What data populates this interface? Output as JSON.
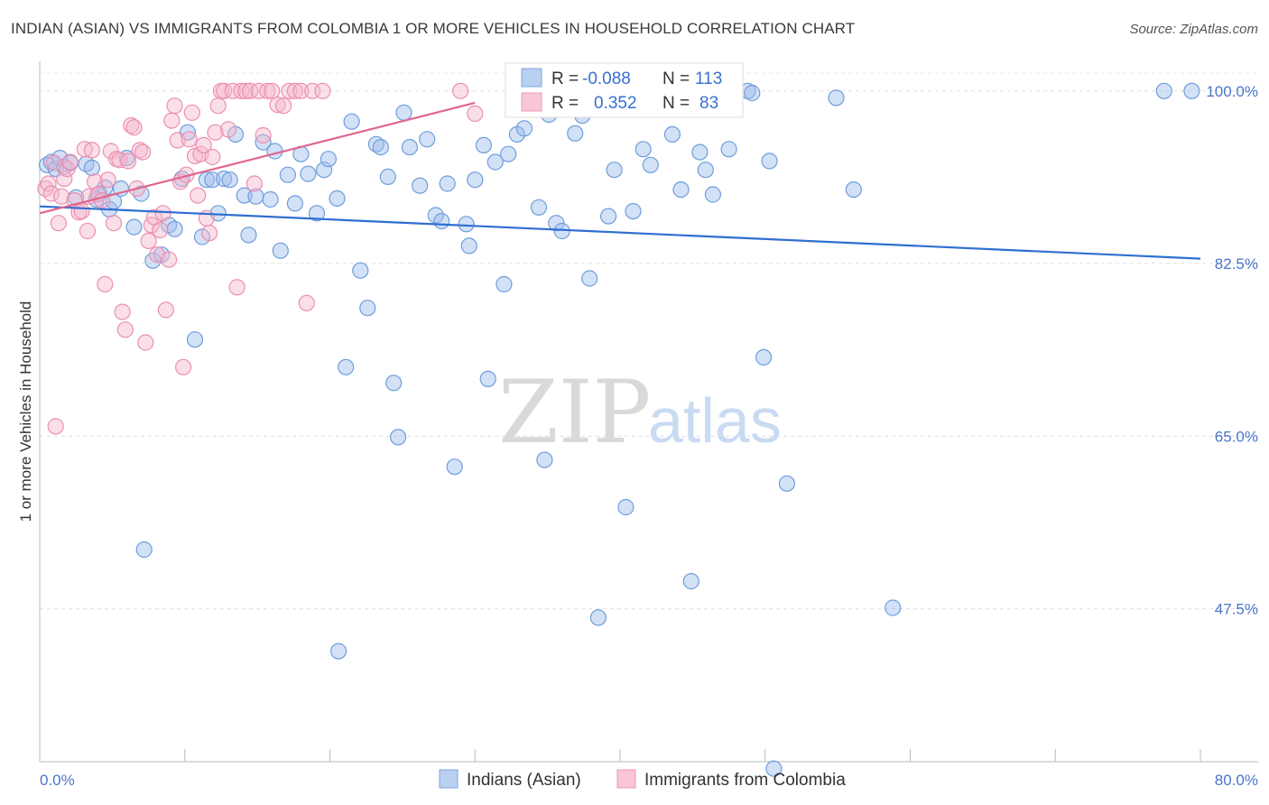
{
  "title": "INDIAN (ASIAN) VS IMMIGRANTS FROM COLOMBIA 1 OR MORE VEHICLES IN HOUSEHOLD CORRELATION CHART",
  "source": "Source: ZipAtlas.com",
  "watermark": {
    "zip": "ZIP",
    "atlas": "atlas"
  },
  "chart_data": {
    "type": "scatter",
    "title": "INDIAN (ASIAN) VS IMMIGRANTS FROM COLOMBIA 1 OR MORE VEHICLES IN HOUSEHOLD CORRELATION CHART",
    "xlabel": "",
    "ylabel": "1 or more Vehicles in Household",
    "xlim": [
      0,
      80
    ],
    "ylim": [
      32,
      103
    ],
    "x_tick_labels": [
      {
        "value": 0,
        "label": "0.0%"
      },
      {
        "value": 80,
        "label": "80.0%"
      }
    ],
    "y_tick_labels": [
      {
        "value": 100,
        "label": "100.0%"
      },
      {
        "value": 82.5,
        "label": "82.5%"
      },
      {
        "value": 65,
        "label": "65.0%"
      },
      {
        "value": 47.5,
        "label": "47.5%"
      }
    ],
    "grid": true,
    "legend": {
      "position": "top-center",
      "entries": [
        {
          "r_label": "R =",
          "r": "-0.088",
          "n_label": "N =",
          "n": "113"
        },
        {
          "r_label": "R =",
          "r": "0.352",
          "n_label": "N =",
          "n": "83"
        }
      ]
    },
    "series": [
      {
        "name": "Indians (Asian)",
        "color": "#9dbdea",
        "stroke": "#6f9ddc",
        "trend_color": "#2f6fd0",
        "trend": {
          "x": [
            0,
            80
          ],
          "y": [
            88.3,
            83.0
          ]
        },
        "points": [
          [
            0.5,
            92.5
          ],
          [
            0.8,
            92.8
          ],
          [
            1.1,
            92.1
          ],
          [
            1.4,
            93.2
          ],
          [
            1.7,
            92.3
          ],
          [
            2.1,
            92.7
          ],
          [
            2.5,
            89.2
          ],
          [
            3.2,
            92.6
          ],
          [
            3.6,
            92.2
          ],
          [
            3.9,
            89.0
          ],
          [
            4.1,
            89.6
          ],
          [
            4.5,
            90.2
          ],
          [
            4.8,
            88.0
          ],
          [
            5.1,
            88.8
          ],
          [
            5.6,
            90.1
          ],
          [
            6.0,
            93.2
          ],
          [
            6.5,
            86.2
          ],
          [
            7.0,
            89.6
          ],
          [
            7.8,
            82.8
          ],
          [
            8.4,
            83.4
          ],
          [
            8.9,
            86.4
          ],
          [
            9.3,
            86.0
          ],
          [
            9.8,
            91.1
          ],
          [
            10.2,
            95.8
          ],
          [
            10.7,
            74.8
          ],
          [
            11.2,
            85.2
          ],
          [
            11.5,
            91.0
          ],
          [
            11.9,
            91.0
          ],
          [
            12.3,
            87.6
          ],
          [
            12.7,
            91.1
          ],
          [
            13.1,
            91.0
          ],
          [
            13.5,
            95.6
          ],
          [
            14.1,
            89.4
          ],
          [
            14.4,
            85.4
          ],
          [
            14.9,
            89.3
          ],
          [
            15.4,
            94.8
          ],
          [
            15.9,
            89.0
          ],
          [
            16.2,
            93.9
          ],
          [
            16.6,
            83.8
          ],
          [
            17.1,
            91.5
          ],
          [
            17.6,
            88.6
          ],
          [
            18.0,
            93.6
          ],
          [
            18.5,
            91.6
          ],
          [
            19.1,
            87.6
          ],
          [
            19.6,
            92.0
          ],
          [
            19.9,
            93.1
          ],
          [
            20.5,
            89.1
          ],
          [
            21.1,
            72.0
          ],
          [
            21.5,
            96.9
          ],
          [
            22.1,
            81.8
          ],
          [
            22.6,
            78.0
          ],
          [
            23.2,
            94.6
          ],
          [
            23.5,
            94.3
          ],
          [
            24.0,
            91.3
          ],
          [
            24.4,
            70.4
          ],
          [
            24.7,
            64.9
          ],
          [
            25.1,
            97.8
          ],
          [
            25.5,
            94.3
          ],
          [
            26.2,
            90.4
          ],
          [
            26.7,
            95.1
          ],
          [
            27.3,
            87.4
          ],
          [
            27.7,
            86.8
          ],
          [
            28.1,
            90.6
          ],
          [
            28.6,
            61.9
          ],
          [
            29.4,
            86.5
          ],
          [
            29.6,
            84.3
          ],
          [
            30.0,
            91.0
          ],
          [
            30.6,
            94.5
          ],
          [
            30.9,
            70.8
          ],
          [
            31.4,
            92.8
          ],
          [
            32.0,
            80.4
          ],
          [
            32.3,
            93.6
          ],
          [
            32.9,
            95.6
          ],
          [
            33.4,
            96.2
          ],
          [
            33.9,
            100.0
          ],
          [
            34.4,
            88.2
          ],
          [
            34.8,
            62.6
          ],
          [
            35.1,
            97.6
          ],
          [
            35.6,
            86.6
          ],
          [
            36.0,
            85.8
          ],
          [
            36.4,
            98.3
          ],
          [
            36.9,
            95.7
          ],
          [
            37.4,
            97.5
          ],
          [
            37.9,
            81.0
          ],
          [
            38.1,
            98.5
          ],
          [
            38.5,
            46.6
          ],
          [
            39.2,
            87.3
          ],
          [
            39.6,
            92.0
          ],
          [
            40.4,
            57.8
          ],
          [
            40.9,
            87.8
          ],
          [
            41.6,
            94.1
          ],
          [
            42.1,
            92.5
          ],
          [
            43.0,
            98.6
          ],
          [
            43.6,
            95.6
          ],
          [
            44.2,
            90.0
          ],
          [
            44.9,
            50.3
          ],
          [
            45.5,
            93.8
          ],
          [
            45.9,
            92.0
          ],
          [
            46.4,
            89.5
          ],
          [
            47.5,
            94.1
          ],
          [
            48.8,
            100.0
          ],
          [
            49.1,
            99.8
          ],
          [
            49.9,
            73.0
          ],
          [
            50.3,
            92.9
          ],
          [
            50.6,
            31.3
          ],
          [
            51.5,
            60.2
          ],
          [
            54.9,
            99.3
          ],
          [
            56.1,
            90.0
          ],
          [
            58.8,
            47.6
          ],
          [
            77.5,
            100.0
          ],
          [
            79.4,
            100.0
          ],
          [
            7.2,
            53.5
          ],
          [
            20.6,
            43.2
          ]
        ]
      },
      {
        "name": "Immigrants from Colombia",
        "color": "#f5b8cf",
        "stroke": "#eb8fb0",
        "trend_color": "#e06690",
        "trend": {
          "x": [
            0,
            30
          ],
          "y": [
            87.6,
            98.8
          ]
        },
        "points": [
          [
            0.4,
            90.1
          ],
          [
            0.6,
            90.6
          ],
          [
            0.8,
            89.6
          ],
          [
            1.0,
            92.7
          ],
          [
            1.1,
            66.0
          ],
          [
            1.3,
            86.6
          ],
          [
            1.5,
            89.3
          ],
          [
            1.7,
            91.1
          ],
          [
            1.9,
            92.1
          ],
          [
            2.1,
            92.8
          ],
          [
            2.4,
            88.9
          ],
          [
            2.7,
            87.7
          ],
          [
            2.9,
            87.8
          ],
          [
            3.1,
            94.1
          ],
          [
            3.3,
            85.8
          ],
          [
            3.4,
            89.3
          ],
          [
            3.6,
            94.0
          ],
          [
            3.8,
            90.8
          ],
          [
            4.0,
            89.5
          ],
          [
            4.3,
            88.9
          ],
          [
            4.5,
            80.4
          ],
          [
            4.7,
            91.0
          ],
          [
            4.9,
            93.9
          ],
          [
            5.1,
            86.6
          ],
          [
            5.3,
            93.1
          ],
          [
            5.5,
            93.0
          ],
          [
            5.7,
            77.6
          ],
          [
            5.9,
            75.8
          ],
          [
            6.1,
            92.9
          ],
          [
            6.3,
            96.5
          ],
          [
            6.5,
            96.3
          ],
          [
            6.7,
            90.1
          ],
          [
            6.9,
            94.0
          ],
          [
            7.1,
            93.8
          ],
          [
            7.3,
            74.5
          ],
          [
            7.5,
            84.8
          ],
          [
            7.7,
            86.4
          ],
          [
            7.9,
            87.2
          ],
          [
            8.1,
            83.4
          ],
          [
            8.3,
            85.9
          ],
          [
            8.5,
            87.6
          ],
          [
            8.7,
            77.8
          ],
          [
            8.9,
            82.9
          ],
          [
            9.1,
            97.0
          ],
          [
            9.3,
            98.5
          ],
          [
            9.5,
            95.0
          ],
          [
            9.7,
            90.8
          ],
          [
            9.9,
            72.0
          ],
          [
            10.1,
            91.5
          ],
          [
            10.3,
            95.1
          ],
          [
            10.5,
            97.8
          ],
          [
            10.7,
            93.4
          ],
          [
            10.9,
            89.4
          ],
          [
            11.1,
            93.6
          ],
          [
            11.3,
            94.5
          ],
          [
            11.5,
            87.1
          ],
          [
            11.7,
            85.6
          ],
          [
            11.9,
            93.3
          ],
          [
            12.1,
            95.8
          ],
          [
            12.3,
            98.5
          ],
          [
            12.5,
            100.0
          ],
          [
            12.7,
            100.0
          ],
          [
            13.0,
            96.1
          ],
          [
            13.3,
            100.0
          ],
          [
            13.6,
            80.1
          ],
          [
            13.9,
            100.0
          ],
          [
            14.2,
            100.0
          ],
          [
            14.5,
            100.0
          ],
          [
            14.8,
            90.6
          ],
          [
            15.1,
            100.0
          ],
          [
            15.4,
            95.5
          ],
          [
            15.7,
            100.0
          ],
          [
            16.0,
            100.0
          ],
          [
            16.4,
            98.6
          ],
          [
            16.8,
            98.5
          ],
          [
            17.2,
            100.0
          ],
          [
            17.6,
            100.0
          ],
          [
            18.0,
            100.0
          ],
          [
            18.4,
            78.5
          ],
          [
            18.8,
            100.0
          ],
          [
            19.5,
            100.0
          ],
          [
            30.0,
            97.7
          ],
          [
            29.0,
            100.0
          ]
        ]
      }
    ]
  },
  "bottom_legend": [
    {
      "label": "Indians (Asian)"
    },
    {
      "label": "Immigrants from Colombia"
    }
  ]
}
